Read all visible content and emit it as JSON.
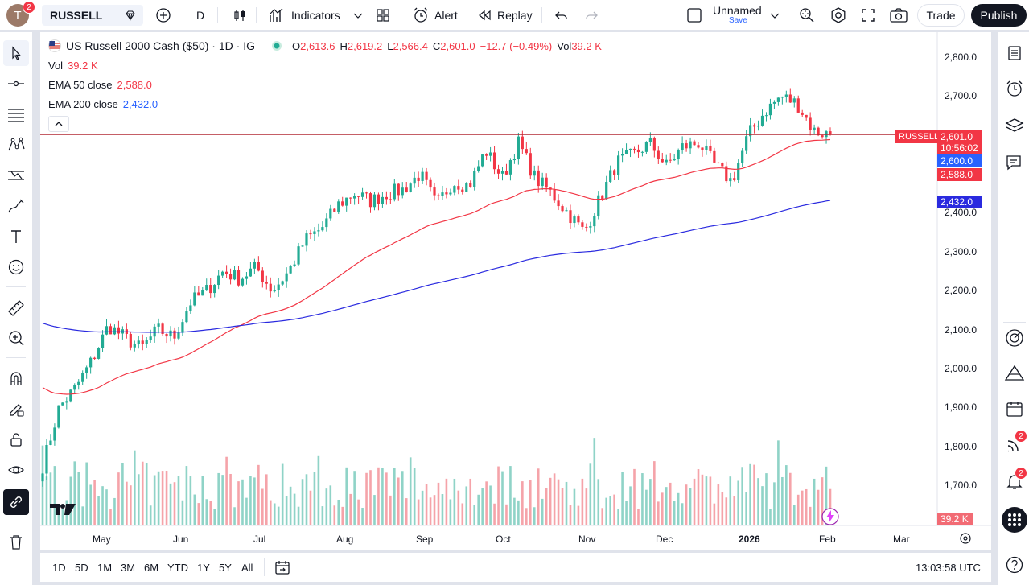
{
  "topbar": {
    "avatar_letter": "T",
    "avatar_badge": "2",
    "symbol": "RUSSELL",
    "interval": "D",
    "indicators_label": "Indicators",
    "alert_label": "Alert",
    "replay_label": "Replay",
    "layout_name": "Unnamed",
    "layout_save": "Save",
    "trade_label": "Trade",
    "publish_label": "Publish"
  },
  "legend": {
    "title": "US Russell 2000 Cash ($50) · 1D · IG",
    "open_label": "O",
    "open": "2,613.6",
    "high_label": "H",
    "high": "2,619.2",
    "low_label": "L",
    "low": "2,566.4",
    "close_label": "C",
    "close": "2,601.0",
    "change": "−12.7 (−0.49%)",
    "vol_label": "Vol",
    "vol": "39.2 K",
    "vol_row_label": "Vol",
    "vol_row_value": "39.2 K",
    "ema50_label": "EMA 50 close",
    "ema50_value": "2,588.0",
    "ema200_label": "EMA 200 close",
    "ema200_value": "2,432.0"
  },
  "price_axis": {
    "labels": [
      "2,800.0",
      "2,700.0",
      "2,600.0",
      "2,500.0",
      "2,400.0",
      "2,300.0",
      "2,200.0",
      "2,100.0",
      "2,000.0",
      "1,900.0",
      "1,800.0",
      "1,700.0"
    ],
    "tag_symbol": "RUSSELL",
    "tag_price": "2,601.0",
    "tag_countdown": "10:56:02",
    "tag_2600": "2,600.0",
    "tag_ema50": "2,588.0",
    "tag_ema200": "2,432.0",
    "tag_vol": "39.2 K"
  },
  "time_axis": {
    "labels": [
      "May",
      "Jun",
      "Jul",
      "Aug",
      "Sep",
      "Oct",
      "Nov",
      "Dec",
      "2026",
      "Feb",
      "Mar"
    ]
  },
  "bottombar": {
    "ranges": [
      "1D",
      "5D",
      "1M",
      "3M",
      "6M",
      "YTD",
      "1Y",
      "5Y",
      "All"
    ],
    "clock": "13:03:58 UTC"
  },
  "right_badges": {
    "ideas": "2",
    "alerts": "2"
  },
  "colors": {
    "up": "#22ab94",
    "down": "#f23645",
    "ema50": "#f23645",
    "ema200": "#2a2adf",
    "accent": "#2962ff"
  },
  "chart_data": {
    "type": "candlestick",
    "y_range": [
      1650,
      2840
    ],
    "y_ticks": [
      1700,
      1800,
      1900,
      2000,
      2100,
      2200,
      2300,
      2400,
      2500,
      2600,
      2700,
      2800
    ],
    "x_months": [
      "May",
      "Jun",
      "Jul",
      "Aug",
      "Sep",
      "Oct",
      "Nov",
      "Dec",
      "2026",
      "Feb",
      "Mar"
    ],
    "close_anchors": [
      1750,
      1900,
      1950,
      2020,
      2110,
      2080,
      2050,
      2100,
      2080,
      2170,
      2200,
      2250,
      2230,
      2260,
      2200,
      2250,
      2330,
      2360,
      2420,
      2450,
      2430,
      2450,
      2460,
      2500,
      2420,
      2480,
      2470,
      2560,
      2490,
      2580,
      2490,
      2450,
      2400,
      2350,
      2440,
      2530,
      2550,
      2580,
      2520,
      2570,
      2580,
      2520,
      2480,
      2600,
      2660,
      2700,
      2680,
      2610,
      2601
    ],
    "last_close": 2601.0,
    "ema50_last": 2588.0,
    "ema200_last": 2432.0
  }
}
